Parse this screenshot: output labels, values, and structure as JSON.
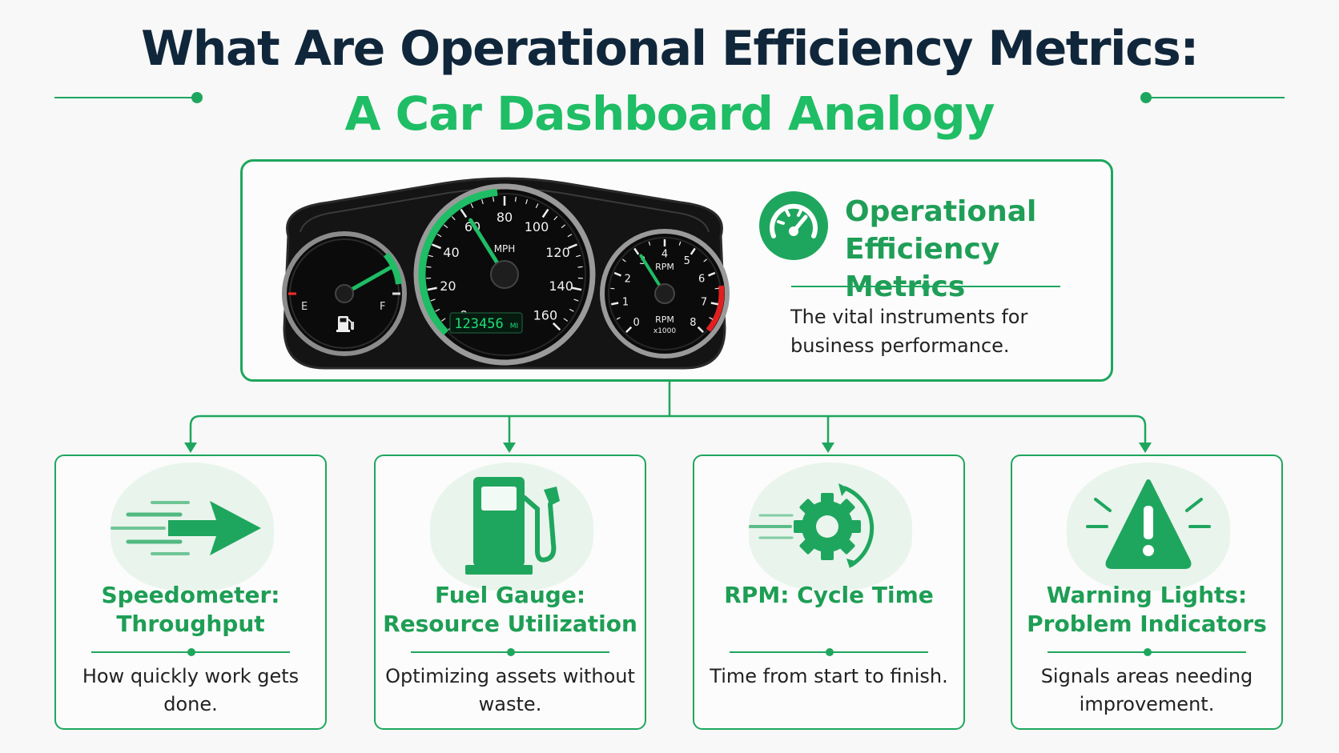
{
  "header": {
    "title_line1": "What Are Operational Efficiency Metrics:",
    "title_line2": "A Car Dashboard Analogy"
  },
  "dashboard": {
    "fuel_gauge": {
      "empty_label": "E",
      "full_label": "F"
    },
    "speedometer": {
      "unit": "MPH",
      "ticks": [
        "0",
        "20",
        "40",
        "60",
        "80",
        "100",
        "120",
        "140",
        "160"
      ],
      "odometer": "123456",
      "odometer_unit": "MI"
    },
    "tachometer": {
      "unit": "RPM",
      "unit_bottom": "RPM",
      "multiplier": "x1000",
      "ticks": [
        "0",
        "1",
        "2",
        "3",
        "4",
        "5",
        "6",
        "7",
        "8"
      ]
    }
  },
  "overview": {
    "title": "Operational Efficiency Metrics",
    "description": "The vital instruments for business performance."
  },
  "cards": [
    {
      "title": "Speedometer: Throughput",
      "description": "How quickly work gets done."
    },
    {
      "title": "Fuel Gauge: Resource Utilization",
      "description": "Optimizing assets without waste."
    },
    {
      "title": "RPM: Cycle Time",
      "description": "Time from start to finish."
    },
    {
      "title": "Warning Lights: Problem Indicators",
      "description": "Signals areas needing improvement."
    }
  ],
  "colors": {
    "accent": "#1fa65e",
    "title_dark": "#10263b",
    "title_green": "#1fbd65",
    "panel_black": "#141414"
  },
  "icons": [
    "speedometer-icon",
    "arrow-motion-icon",
    "fuel-pump-icon",
    "gear-cycle-icon",
    "warning-triangle-icon",
    "fuel-icon"
  ]
}
